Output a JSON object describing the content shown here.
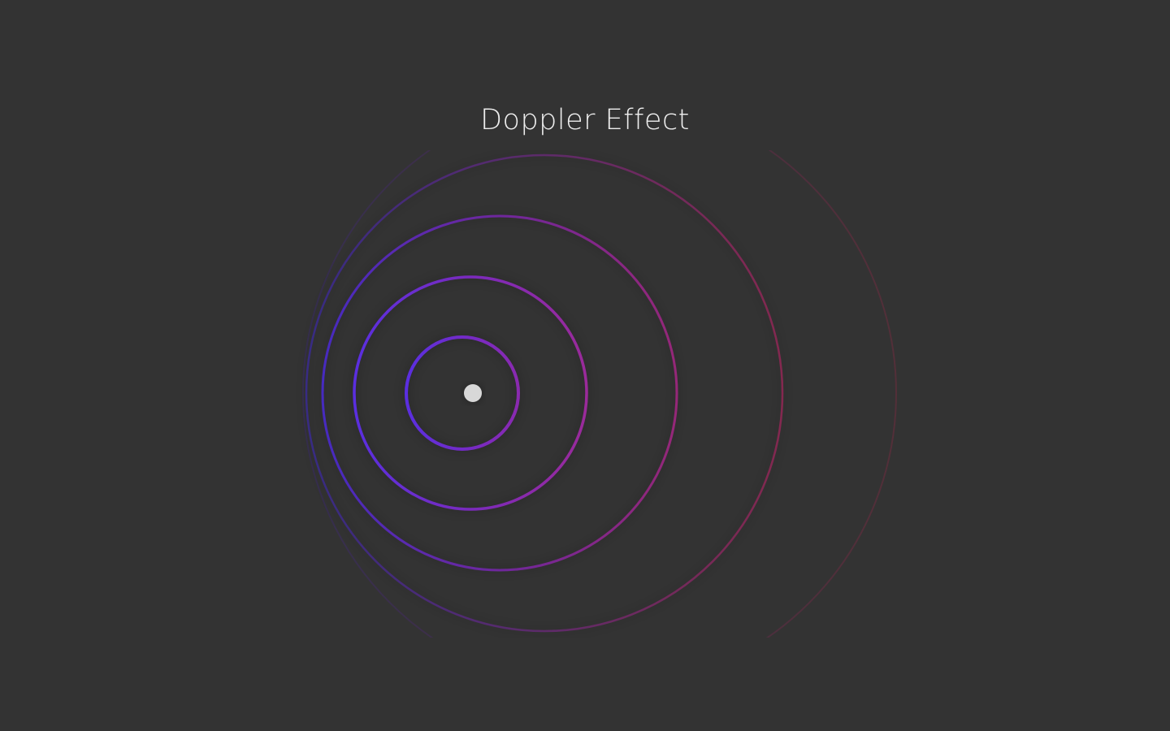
{
  "title": "Doppler Effect",
  "colors": {
    "background": "#333333",
    "source_dot": "#d8d8d8",
    "wave_blue": "#5a2ee0",
    "wave_magenta": "#a02680",
    "wave_red": "#a0283c"
  }
}
